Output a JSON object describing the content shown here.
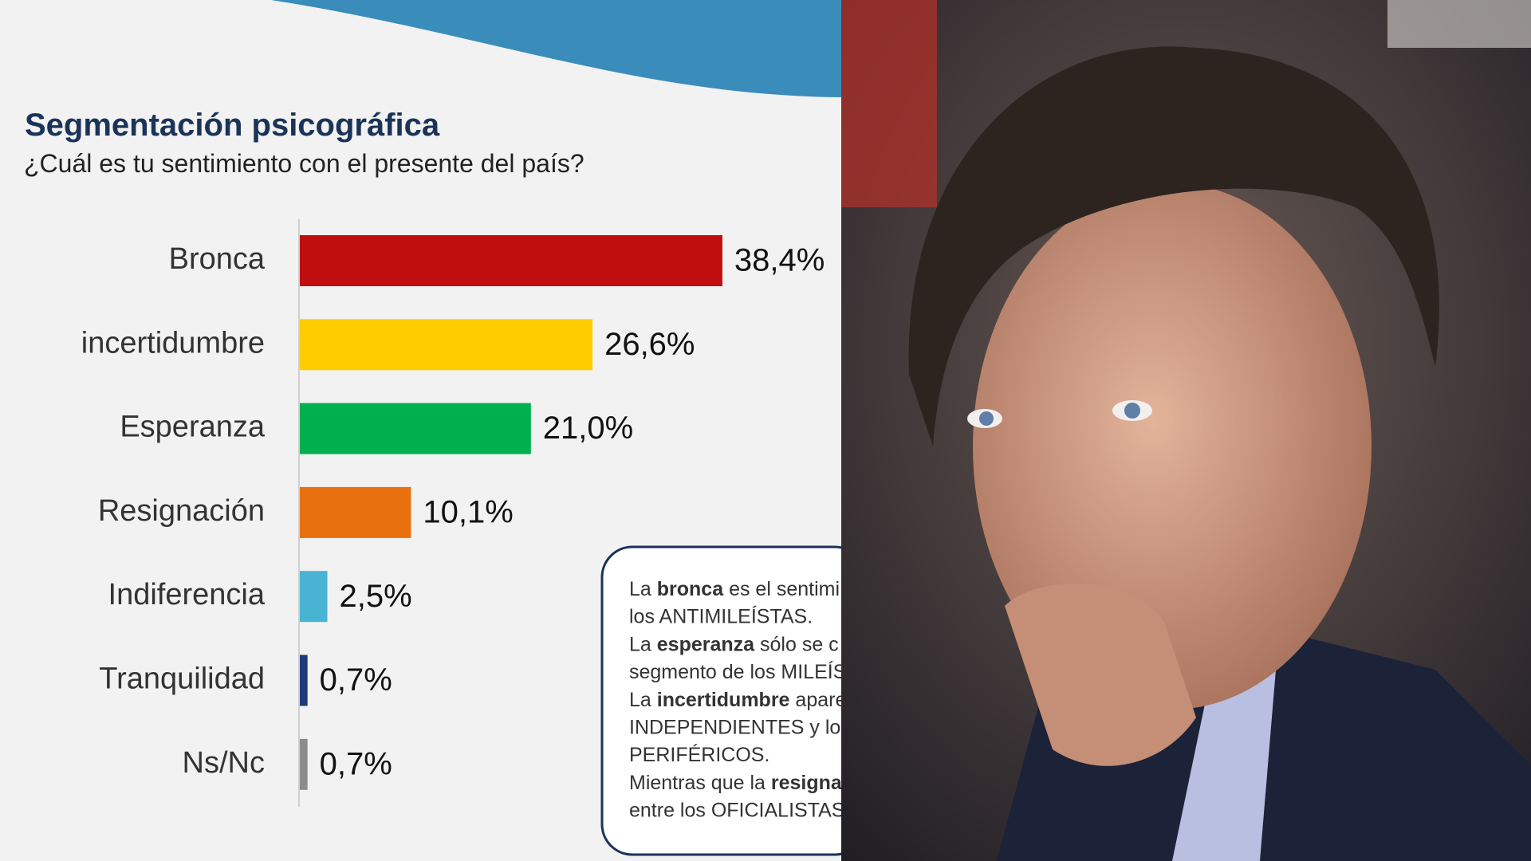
{
  "chart_data": {
    "type": "bar",
    "orientation": "horizontal",
    "title": "Segmentación psicográfica",
    "subtitle": "¿Cuál es tu sentimiento con el presente del país?",
    "categories": [
      "Bronca",
      "incertidumbre",
      "Esperanza",
      "Resignación",
      "Indiferencia",
      "Tranquilidad",
      "Ns/Nc"
    ],
    "values": [
      38.4,
      26.6,
      21.0,
      10.1,
      2.5,
      0.7,
      0.7
    ],
    "value_labels": [
      "38,4%",
      "26,6%",
      "21,0%",
      "10,1%",
      "2,5%",
      "0,7%",
      "0,7%"
    ],
    "colors": [
      "#c00d0d",
      "#ffcc00",
      "#00b04f",
      "#e8700f",
      "#49b3d4",
      "#1f3a78",
      "#8c8c8c"
    ]
  },
  "note": {
    "lines": [
      [
        {
          "text": "La ",
          "bold": false
        },
        {
          "text": "bronca",
          "bold": true
        },
        {
          "text": " es el sentimi",
          "bold": false
        }
      ],
      [
        {
          "text": "los ANTIMILEÍSTAS.",
          "bold": false
        }
      ],
      [
        {
          "text": "La ",
          "bold": false
        },
        {
          "text": "esperanza",
          "bold": true
        },
        {
          "text": " sólo se c",
          "bold": false
        }
      ],
      [
        {
          "text": "segmento de los MILEÍS",
          "bold": false
        }
      ],
      [
        {
          "text": "La ",
          "bold": false
        },
        {
          "text": "incertidumbre",
          "bold": true
        },
        {
          "text": " apare",
          "bold": false
        }
      ],
      [
        {
          "text": "INDEPENDIENTES y los",
          "bold": false
        }
      ],
      [
        {
          "text": "PERIFÉRICOS.",
          "bold": false
        }
      ],
      [
        {
          "text": "Mientras que la ",
          "bold": false
        },
        {
          "text": "resigna",
          "bold": true
        }
      ],
      [
        {
          "text": "entre los OFICIALISTAS",
          "bold": false
        }
      ]
    ]
  }
}
